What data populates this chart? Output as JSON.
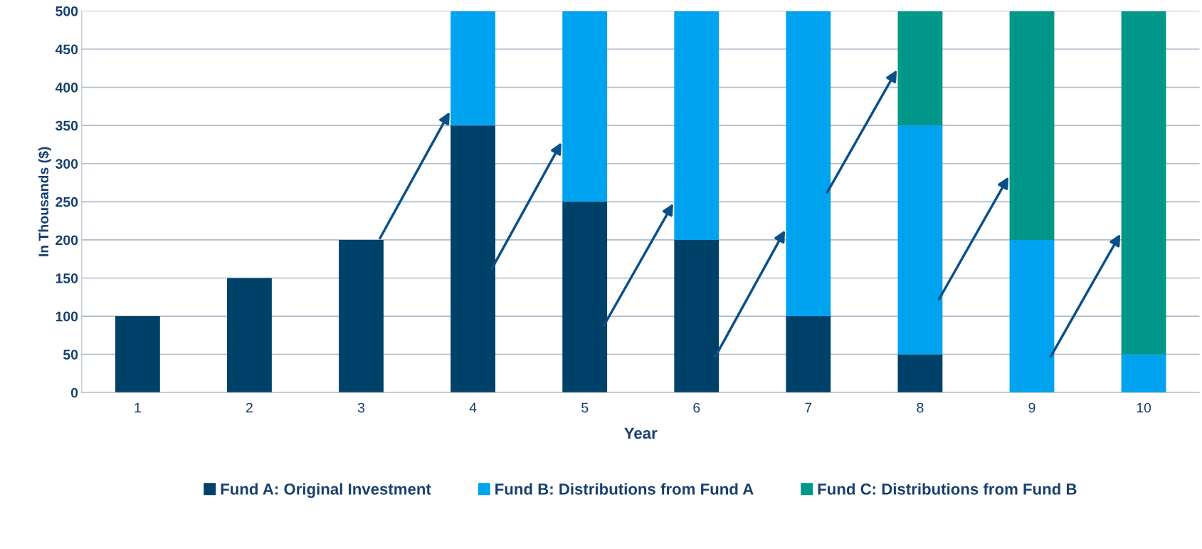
{
  "chart_data": {
    "type": "bar",
    "stacked": true,
    "xlabel": "Year",
    "ylabel": "In Thousands ($)",
    "categories": [
      "1",
      "2",
      "3",
      "4",
      "5",
      "6",
      "7",
      "8",
      "9",
      "10"
    ],
    "series": [
      {
        "name": "Fund A: Original Investment",
        "color": "#00416a",
        "values": [
          100,
          150,
          200,
          350,
          250,
          200,
          100,
          50,
          0,
          0
        ]
      },
      {
        "name": "Fund B: Distributions from Fund A",
        "color": "#00a3ef",
        "values": [
          0,
          0,
          0,
          150,
          250,
          300,
          400,
          300,
          200,
          50
        ]
      },
      {
        "name": "Fund C: Distributions from Fund B",
        "color": "#00968a",
        "values": [
          0,
          0,
          0,
          0,
          0,
          0,
          0,
          150,
          300,
          450
        ]
      }
    ],
    "ylim": [
      0,
      500
    ],
    "yticks": [
      0,
      50,
      100,
      150,
      200,
      250,
      300,
      350,
      400,
      450,
      500
    ],
    "grid": "y",
    "legend": "bottom"
  }
}
